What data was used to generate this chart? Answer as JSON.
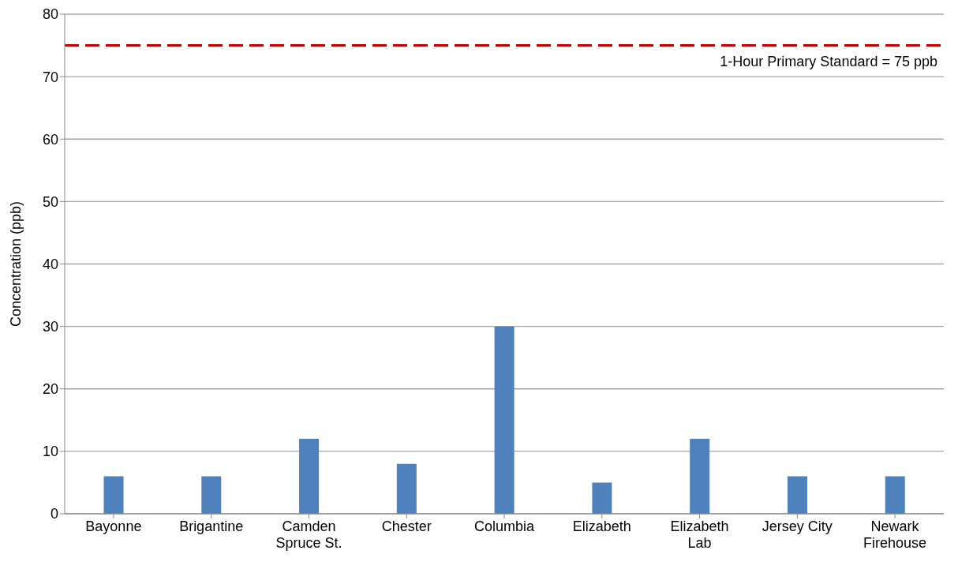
{
  "chart_data": {
    "type": "bar",
    "ylabel": "Concentration (ppb)",
    "categories": [
      "Bayonne",
      "Brigantine",
      "Camden Spruce St.",
      "Chester",
      "Columbia",
      "Elizabeth",
      "Elizabeth Lab",
      "Jersey City",
      "Newark Firehouse"
    ],
    "values": [
      6,
      6,
      12,
      8,
      30,
      5,
      12,
      6,
      6
    ],
    "color": "#4f81bd",
    "ylim": [
      0,
      80
    ],
    "yticks": [
      0,
      10,
      20,
      30,
      40,
      50,
      60,
      70,
      80
    ],
    "grid": "y",
    "legend": false,
    "ref_lines": [
      {
        "axis": "y",
        "value": 75,
        "label": "1-Hour Primary Standard = 75 ppb",
        "color": "#c00000",
        "line_style": "dashed"
      }
    ]
  }
}
